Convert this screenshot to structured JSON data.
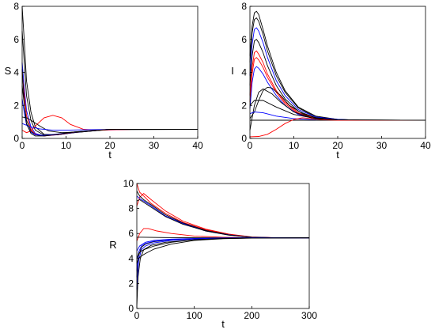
{
  "chart_data": [
    {
      "type": "line",
      "xlabel": "t",
      "ylabel": "S",
      "xlim": [
        0,
        40
      ],
      "ylim": [
        0,
        8
      ],
      "xticks": [
        "0",
        "10",
        "20",
        "30",
        "40"
      ],
      "yticks": [
        "0",
        "2",
        "4",
        "6",
        "8"
      ],
      "series": [
        {
          "color": "#000000",
          "x": [
            0,
            0.5,
            1,
            2,
            3,
            5,
            8,
            12,
            20,
            40
          ],
          "y": [
            8.0,
            5.8,
            3.5,
            1.6,
            0.7,
            0.25,
            0.22,
            0.35,
            0.55,
            0.55
          ]
        },
        {
          "color": "#000000",
          "x": [
            0,
            0.5,
            1,
            2,
            3,
            5,
            8,
            12,
            20,
            40
          ],
          "y": [
            6.5,
            4.5,
            2.6,
            1.1,
            0.5,
            0.2,
            0.22,
            0.36,
            0.55,
            0.55
          ]
        },
        {
          "color": "#0000ff",
          "x": [
            0,
            0.5,
            1,
            2,
            3,
            5,
            8,
            12,
            20,
            40
          ],
          "y": [
            4.6,
            3.0,
            1.7,
            0.7,
            0.3,
            0.15,
            0.22,
            0.37,
            0.55,
            0.55
          ]
        },
        {
          "color": "#ff0000",
          "x": [
            0,
            0.5,
            1,
            2,
            3,
            5,
            8,
            12,
            20,
            40
          ],
          "y": [
            4.0,
            2.6,
            1.4,
            0.55,
            0.25,
            0.15,
            0.23,
            0.38,
            0.55,
            0.55
          ]
        },
        {
          "color": "#000000",
          "x": [
            0,
            0.5,
            1,
            2,
            3,
            5,
            8,
            12,
            20,
            40
          ],
          "y": [
            3.2,
            2.0,
            1.1,
            0.45,
            0.22,
            0.16,
            0.25,
            0.39,
            0.55,
            0.55
          ]
        },
        {
          "color": "#0000ff",
          "x": [
            0,
            0.5,
            1,
            2,
            3,
            5,
            8,
            12,
            20,
            40
          ],
          "y": [
            2.4,
            1.5,
            0.85,
            0.38,
            0.22,
            0.18,
            0.27,
            0.4,
            0.55,
            0.55
          ]
        },
        {
          "color": "#000000",
          "x": [
            0,
            1,
            2,
            4,
            6,
            9,
            13,
            20,
            40
          ],
          "y": [
            1.3,
            1.25,
            1.1,
            0.75,
            0.45,
            0.35,
            0.4,
            0.53,
            0.55
          ]
        },
        {
          "color": "#ff0000",
          "x": [
            0,
            1,
            2,
            3,
            5,
            7,
            9,
            11,
            14,
            18,
            25,
            40
          ],
          "y": [
            0.5,
            0.35,
            0.45,
            0.75,
            1.25,
            1.4,
            1.25,
            0.85,
            0.55,
            0.5,
            0.55,
            0.55
          ]
        },
        {
          "color": "#0000ff",
          "x": [
            0,
            1,
            2,
            4,
            7,
            10,
            15,
            25,
            40
          ],
          "y": [
            0.9,
            0.8,
            0.7,
            0.58,
            0.5,
            0.5,
            0.53,
            0.55,
            0.55
          ]
        },
        {
          "color": "#000000",
          "x": [
            0,
            0.5,
            1,
            2,
            3,
            5,
            8,
            12,
            20,
            40
          ],
          "y": [
            4.2,
            2.0,
            0.9,
            0.3,
            0.15,
            0.15,
            0.25,
            0.4,
            0.55,
            0.55
          ]
        }
      ]
    },
    {
      "type": "line",
      "xlabel": "t",
      "ylabel": "I",
      "xlim": [
        0,
        40
      ],
      "ylim": [
        0,
        8
      ],
      "xticks": [
        "0",
        "10",
        "20",
        "30",
        "40"
      ],
      "yticks": [
        "0",
        "2",
        "4",
        "6",
        "8"
      ],
      "series": [
        {
          "color": "#000000",
          "x": [
            0,
            0.5,
            1,
            1.5,
            2,
            3,
            4,
            6,
            8,
            11,
            15,
            20,
            25,
            40
          ],
          "y": [
            5.0,
            6.8,
            7.6,
            7.7,
            7.5,
            6.6,
            5.6,
            4.0,
            2.9,
            1.9,
            1.35,
            1.15,
            1.1,
            1.1
          ]
        },
        {
          "color": "#000000",
          "x": [
            0,
            0.5,
            1,
            1.5,
            2,
            3,
            4,
            6,
            8,
            11,
            15,
            20,
            25,
            40
          ],
          "y": [
            4.6,
            6.4,
            7.2,
            7.3,
            7.1,
            6.3,
            5.3,
            3.8,
            2.8,
            1.85,
            1.3,
            1.15,
            1.1,
            1.1
          ]
        },
        {
          "color": "#0000ff",
          "x": [
            0,
            0.5,
            1,
            1.5,
            2,
            3,
            4,
            6,
            8,
            11,
            15,
            20,
            25,
            40
          ],
          "y": [
            3.8,
            5.7,
            6.6,
            6.7,
            6.5,
            5.8,
            4.9,
            3.5,
            2.6,
            1.75,
            1.3,
            1.15,
            1.1,
            1.1
          ]
        },
        {
          "color": "#000000",
          "x": [
            0,
            0.5,
            1,
            1.5,
            2,
            3,
            4,
            6,
            8,
            11,
            15,
            20,
            25,
            40
          ],
          "y": [
            3.2,
            5.0,
            5.9,
            6.0,
            5.8,
            5.2,
            4.4,
            3.2,
            2.4,
            1.65,
            1.25,
            1.12,
            1.1,
            1.1
          ]
        },
        {
          "color": "#ff0000",
          "x": [
            0,
            0.5,
            1,
            1.5,
            2,
            3,
            4,
            6,
            8,
            11,
            15,
            20,
            25,
            40
          ],
          "y": [
            2.6,
            4.3,
            5.2,
            5.3,
            5.1,
            4.6,
            3.9,
            2.9,
            2.2,
            1.55,
            1.2,
            1.12,
            1.1,
            1.1
          ]
        },
        {
          "color": "#ff0000",
          "x": [
            0,
            0.5,
            1,
            1.5,
            2,
            3,
            4,
            6,
            8,
            11,
            15,
            20,
            25,
            40
          ],
          "y": [
            2.2,
            3.9,
            4.8,
            4.9,
            4.75,
            4.3,
            3.7,
            2.8,
            2.1,
            1.5,
            1.2,
            1.12,
            1.1,
            1.1
          ]
        },
        {
          "color": "#0000ff",
          "x": [
            0,
            0.5,
            1,
            1.5,
            2,
            3,
            4,
            6,
            8,
            11,
            15,
            20,
            25,
            40
          ],
          "y": [
            1.8,
            3.4,
            4.2,
            4.35,
            4.25,
            3.9,
            3.4,
            2.6,
            2.0,
            1.45,
            1.18,
            1.12,
            1.1,
            1.1
          ]
        },
        {
          "color": "#000000",
          "x": [
            0,
            1,
            2,
            3,
            4,
            5,
            7,
            9,
            12,
            15,
            20,
            40
          ],
          "y": [
            1.2,
            1.6,
            2.3,
            2.9,
            3.1,
            3.05,
            2.6,
            2.0,
            1.5,
            1.25,
            1.12,
            1.1
          ]
        },
        {
          "color": "#000000",
          "x": [
            0,
            1,
            2,
            3,
            5,
            7,
            10,
            14,
            20,
            40
          ],
          "y": [
            0.5,
            2.0,
            2.8,
            3.0,
            2.7,
            2.2,
            1.6,
            1.25,
            1.12,
            1.1
          ]
        },
        {
          "color": "#0000ff",
          "x": [
            0,
            1,
            3,
            6,
            10,
            15,
            20,
            40
          ],
          "y": [
            1.5,
            1.6,
            1.55,
            1.35,
            1.2,
            1.12,
            1.1,
            1.1
          ]
        },
        {
          "color": "#000000",
          "x": [
            0,
            2,
            5,
            10,
            15,
            20,
            40
          ],
          "y": [
            1.1,
            1.1,
            1.1,
            1.1,
            1.1,
            1.1,
            1.1
          ]
        },
        {
          "color": "#ff0000",
          "x": [
            0,
            2,
            4,
            6,
            8,
            10,
            12,
            14,
            17,
            20,
            25,
            40
          ],
          "y": [
            0.1,
            0.12,
            0.25,
            0.55,
            0.9,
            1.15,
            1.25,
            1.2,
            1.12,
            1.1,
            1.1,
            1.1
          ]
        },
        {
          "color": "#000000",
          "x": [
            0,
            1,
            3,
            6,
            10,
            15,
            20,
            40
          ],
          "y": [
            2.0,
            2.3,
            2.3,
            1.9,
            1.45,
            1.2,
            1.12,
            1.1
          ]
        }
      ]
    },
    {
      "type": "line",
      "xlabel": "t",
      "ylabel": "R",
      "xlim": [
        0,
        300
      ],
      "ylim": [
        0,
        10
      ],
      "xticks": [
        "0",
        "100",
        "200",
        "300"
      ],
      "yticks": [
        "0",
        "2",
        "4",
        "6",
        "8",
        "10"
      ],
      "series": [
        {
          "color": "#ff0000",
          "x": [
            0,
            5,
            12,
            25,
            50,
            80,
            120,
            160,
            200,
            250,
            300
          ],
          "y": [
            10.0,
            9.3,
            9.0,
            8.4,
            7.6,
            6.9,
            6.3,
            5.9,
            5.7,
            5.65,
            5.65
          ]
        },
        {
          "color": "#ff0000",
          "x": [
            0,
            5,
            12,
            25,
            50,
            80,
            120,
            160,
            200,
            250,
            300
          ],
          "y": [
            8.2,
            8.9,
            9.2,
            8.7,
            7.8,
            7.0,
            6.35,
            5.95,
            5.72,
            5.65,
            5.65
          ]
        },
        {
          "color": "#000000",
          "x": [
            0,
            5,
            12,
            25,
            50,
            80,
            120,
            160,
            200,
            250,
            300
          ],
          "y": [
            9.4,
            9.0,
            8.7,
            8.3,
            7.5,
            6.85,
            6.25,
            5.9,
            5.7,
            5.65,
            5.65
          ]
        },
        {
          "color": "#0000ff",
          "x": [
            0,
            5,
            12,
            25,
            50,
            80,
            120,
            160,
            200,
            250,
            300
          ],
          "y": [
            9.0,
            8.8,
            8.6,
            8.2,
            7.4,
            6.8,
            6.2,
            5.88,
            5.7,
            5.65,
            5.65
          ]
        },
        {
          "color": "#000000",
          "x": [
            0,
            5,
            12,
            25,
            50,
            80,
            120,
            160,
            200,
            250,
            300
          ],
          "y": [
            8.6,
            8.7,
            8.5,
            8.1,
            7.35,
            6.75,
            6.2,
            5.87,
            5.7,
            5.65,
            5.65
          ]
        },
        {
          "color": "#ff0000",
          "x": [
            0,
            5,
            12,
            20,
            35,
            60,
            100,
            150,
            200,
            300
          ],
          "y": [
            5.4,
            6.0,
            6.4,
            6.4,
            6.2,
            6.0,
            5.8,
            5.7,
            5.66,
            5.65
          ]
        },
        {
          "color": "#000000",
          "x": [
            0,
            10,
            50,
            100,
            200,
            300
          ],
          "y": [
            5.7,
            5.7,
            5.68,
            5.66,
            5.65,
            5.65
          ]
        },
        {
          "color": "#0000ff",
          "x": [
            0,
            5,
            15,
            30,
            60,
            100,
            150,
            200,
            300
          ],
          "y": [
            4.6,
            5.0,
            5.3,
            5.45,
            5.55,
            5.6,
            5.63,
            5.65,
            5.65
          ]
        },
        {
          "color": "#000000",
          "x": [
            0,
            3,
            8,
            15,
            30,
            60,
            100,
            150,
            200,
            300
          ],
          "y": [
            2.5,
            4.2,
            4.9,
            5.15,
            5.35,
            5.5,
            5.58,
            5.63,
            5.65,
            5.65
          ]
        },
        {
          "color": "#0000ff",
          "x": [
            0,
            3,
            8,
            15,
            30,
            60,
            100,
            150,
            200,
            300
          ],
          "y": [
            1.5,
            3.8,
            4.7,
            5.0,
            5.25,
            5.45,
            5.56,
            5.62,
            5.65,
            5.65
          ]
        },
        {
          "color": "#000000",
          "x": [
            0,
            2,
            6,
            12,
            25,
            50,
            100,
            150,
            200,
            300
          ],
          "y": [
            0.2,
            2.5,
            4.0,
            4.7,
            5.05,
            5.3,
            5.5,
            5.6,
            5.64,
            5.65
          ]
        },
        {
          "color": "#0000ff",
          "x": [
            0,
            3,
            8,
            15,
            30,
            60,
            100,
            150,
            200,
            300
          ],
          "y": [
            3.0,
            4.5,
            5.0,
            5.2,
            5.38,
            5.5,
            5.58,
            5.63,
            5.65,
            5.65
          ]
        },
        {
          "color": "#000000",
          "x": [
            0,
            3,
            8,
            15,
            30,
            60,
            100,
            150,
            200,
            300
          ],
          "y": [
            3.6,
            4.0,
            4.2,
            4.4,
            4.75,
            5.15,
            5.45,
            5.58,
            5.63,
            5.65
          ]
        },
        {
          "color": "#000000",
          "x": [
            0,
            3,
            8,
            15,
            30,
            60,
            100,
            150,
            200,
            300
          ],
          "y": [
            4.0,
            4.4,
            4.6,
            4.75,
            5.0,
            5.3,
            5.5,
            5.6,
            5.64,
            5.65
          ]
        }
      ]
    }
  ]
}
